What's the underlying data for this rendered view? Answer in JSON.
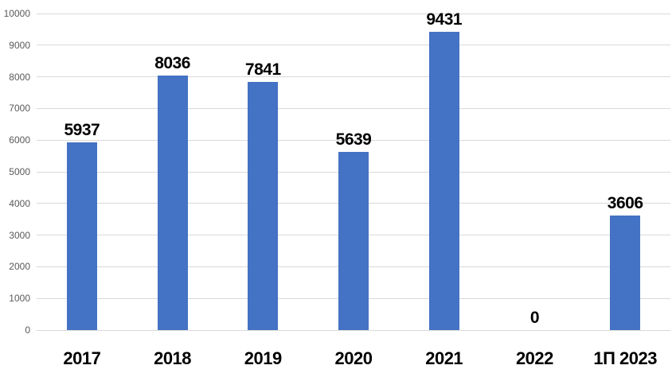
{
  "chart_data": {
    "type": "bar",
    "title": "",
    "xlabel": "",
    "ylabel": "",
    "categories": [
      "2017",
      "2018",
      "2019",
      "2020",
      "2021",
      "2022",
      "1П 2023"
    ],
    "values": [
      5937,
      8036,
      7841,
      5639,
      9431,
      0,
      3606
    ],
    "data_labels": [
      "5937",
      "8036",
      "7841",
      "5639",
      "9431",
      "0",
      "3606"
    ],
    "ylim": [
      0,
      10000
    ],
    "yticks": [
      0,
      1000,
      2000,
      3000,
      4000,
      5000,
      6000,
      7000,
      8000,
      9000,
      10000
    ],
    "ytick_labels": [
      "0",
      "1000",
      "2000",
      "3000",
      "4000",
      "5000",
      "6000",
      "7000",
      "8000",
      "9000",
      "10000"
    ],
    "grid": "horizontal",
    "legend": "none",
    "colors": {
      "bar_fill": "#4472C4",
      "gridline": "#D9D9D9",
      "axis_tick_text": "#595959",
      "data_label_text": "#000000",
      "category_label_text": "#000000",
      "background": "#FFFFFF"
    }
  }
}
